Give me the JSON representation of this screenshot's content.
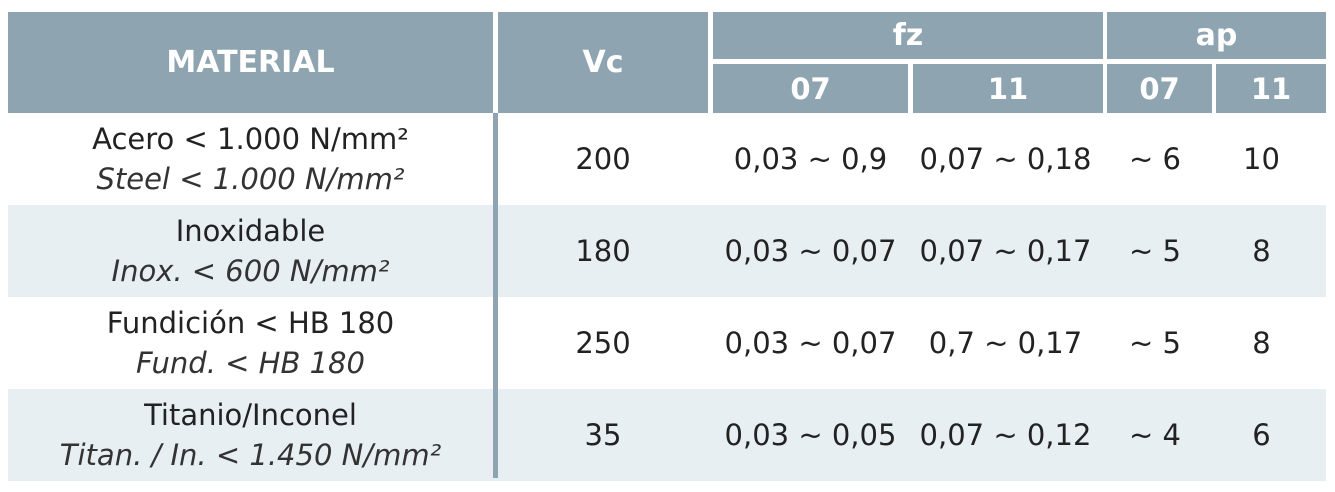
{
  "header": {
    "material": "MATERIAL",
    "vc": "Vc",
    "fz": "fz",
    "ap": "ap",
    "fz_07": "07",
    "fz_11": "11",
    "ap_07": "07",
    "ap_11": "11"
  },
  "rows": [
    {
      "material_es": "Acero < 1.000 N/mm²",
      "material_en": "Steel < 1.000 N/mm²",
      "vc": "200",
      "fz_07": "0,03 ~ 0,9",
      "fz_11": "0,07 ~ 0,18",
      "ap_07": "~ 6",
      "ap_11": "10"
    },
    {
      "material_es": "Inoxidable",
      "material_en": "Inox. < 600 N/mm²",
      "vc": "180",
      "fz_07": "0,03 ~ 0,07",
      "fz_11": "0,07 ~ 0,17",
      "ap_07": "~ 5",
      "ap_11": "8"
    },
    {
      "material_es": "Fundición < HB 180",
      "material_en": "Fund. < HB 180",
      "vc": "250",
      "fz_07": "0,03 ~ 0,07",
      "fz_11": "0,7 ~ 0,17",
      "ap_07": "~ 5",
      "ap_11": "8"
    },
    {
      "material_es": "Titanio/Inconel",
      "material_en": "Titan. / In. < 1.450 N/mm²",
      "vc": "35",
      "fz_07": "0,03 ~ 0,05",
      "fz_11": "0,07 ~ 0,12",
      "ap_07": "~ 4",
      "ap_11": "6"
    }
  ],
  "colors": {
    "header_bg": "#8fa4b1",
    "header_text": "#ffffff",
    "row_shade": "#e8eff3",
    "body_text": "#222222"
  }
}
